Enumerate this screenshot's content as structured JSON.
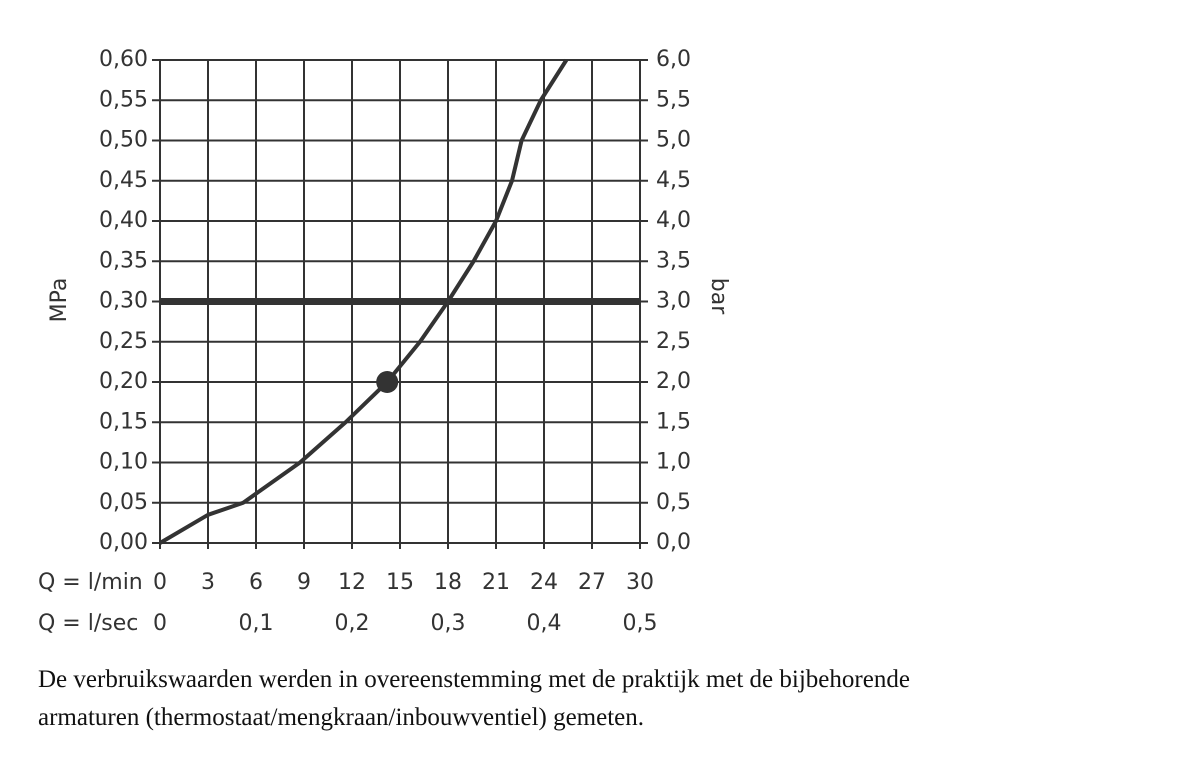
{
  "chart_data": {
    "type": "line",
    "x": [
      0,
      3,
      5.2,
      8.75,
      11.6,
      14.2,
      16.25,
      18,
      19.6,
      21,
      22,
      22.6,
      23.8,
      25.4
    ],
    "values": [
      0,
      0.035,
      0.05,
      0.1,
      0.15,
      0.2,
      0.25,
      0.3,
      0.35,
      0.4,
      0.45,
      0.5,
      0.55,
      0.6
    ],
    "color": "#333333",
    "marker": {
      "x": 14.2,
      "y": 0.2
    },
    "reference_y": 0.3,
    "reference_x": 18,
    "xlabel": "Q = l/min",
    "x2label": "Q = l/sec",
    "ylabel": "MPa",
    "y2label": "bar",
    "xlim": [
      0,
      30
    ],
    "xticks": [
      0,
      3,
      6,
      9,
      12,
      15,
      18,
      21,
      24,
      27,
      30
    ],
    "x2lim": [
      0,
      0.5
    ],
    "x2ticks": [
      0,
      {
        "value": 0.1,
        "label": "0,1"
      },
      {
        "value": 0.2,
        "label": "0,2"
      },
      {
        "value": 0.3,
        "label": "0,3"
      },
      {
        "value": 0.4,
        "label": "0,4"
      },
      {
        "value": 0.5,
        "label": "0,5"
      }
    ],
    "ylim": [
      0,
      0.6
    ],
    "yticks": [
      {
        "value": 0,
        "label": "0,00"
      },
      {
        "value": 0.05,
        "label": "0,05"
      },
      {
        "value": 0.1,
        "label": "0,10"
      },
      {
        "value": 0.15,
        "label": "0,15"
      },
      {
        "value": 0.2,
        "label": "0,20"
      },
      {
        "value": 0.25,
        "label": "0,25"
      },
      {
        "value": 0.3,
        "label": "0,30"
      },
      {
        "value": 0.35,
        "label": "0,35"
      },
      {
        "value": 0.4,
        "label": "0,40"
      },
      {
        "value": 0.45,
        "label": "0,45"
      },
      {
        "value": 0.5,
        "label": "0,50"
      },
      {
        "value": 0.55,
        "label": "0,55"
      },
      {
        "value": 0.6,
        "label": "0,60"
      }
    ],
    "y2lim": [
      0,
      6
    ],
    "y2ticks": [
      {
        "value": 0,
        "label": "0,0"
      },
      {
        "value": 0.5,
        "label": "0,5"
      },
      {
        "value": 1,
        "label": "1,0"
      },
      {
        "value": 1.5,
        "label": "1,5"
      },
      {
        "value": 2,
        "label": "2,0"
      },
      {
        "value": 2.5,
        "label": "2,5"
      },
      {
        "value": 3,
        "label": "3,0"
      },
      {
        "value": 3.5,
        "label": "3,5"
      },
      {
        "value": 4,
        "label": "4,0"
      },
      {
        "value": 4.5,
        "label": "4,5"
      },
      {
        "value": 5,
        "label": "5,0"
      },
      {
        "value": 5.5,
        "label": "5,5"
      },
      {
        "value": 6,
        "label": "6,0"
      }
    ],
    "grid": true
  },
  "caption_lines": [
    "De verbruikswaarden werden in overeenstemming met de praktijk met de bijbehorende",
    "armaturen (thermostaat/mengkraan/inbouwventiel) gemeten."
  ]
}
